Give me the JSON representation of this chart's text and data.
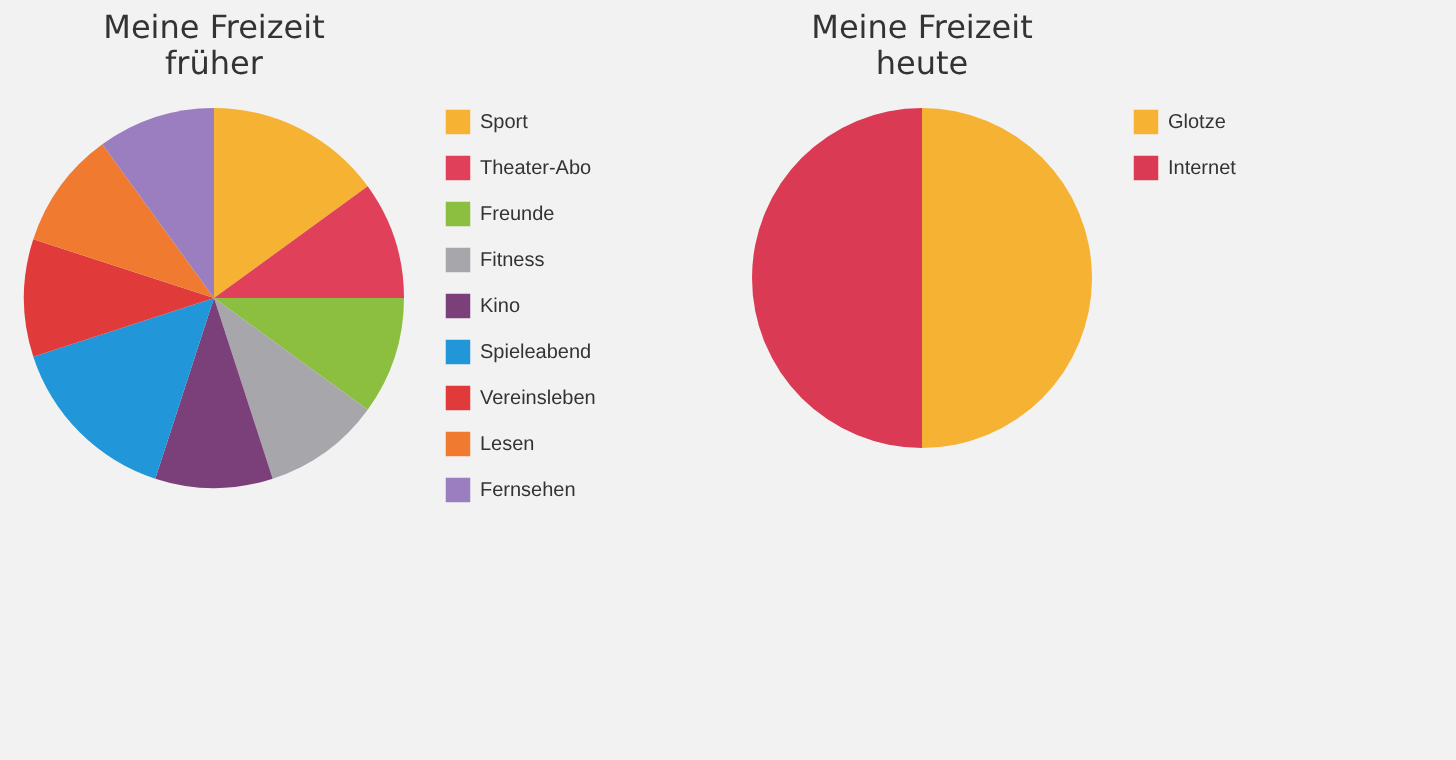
{
  "chart_data": [
    {
      "type": "pie",
      "title": "Meine Freizeit früher",
      "categories": [
        "Sport",
        "Theater-Abo",
        "Freunde",
        "Fitness",
        "Kino",
        "Spieleabend",
        "Vereinsleben",
        "Lesen",
        "Fernsehen"
      ],
      "values": [
        15,
        10,
        10,
        10,
        10,
        15,
        10,
        10,
        10
      ],
      "colors": [
        "#f5b233",
        "#e0405a",
        "#8cbf3f",
        "#a7a6aa",
        "#7b3f7a",
        "#2196d8",
        "#e03a3a",
        "#f07a30",
        "#9a7ec0"
      ],
      "legend": "right"
    },
    {
      "type": "pie",
      "title": "Meine Freizeit heute",
      "categories": [
        "Glotze",
        "Internet"
      ],
      "values": [
        50,
        50
      ],
      "colors": [
        "#f5b233",
        "#db3a55"
      ],
      "legend": "right"
    }
  ]
}
